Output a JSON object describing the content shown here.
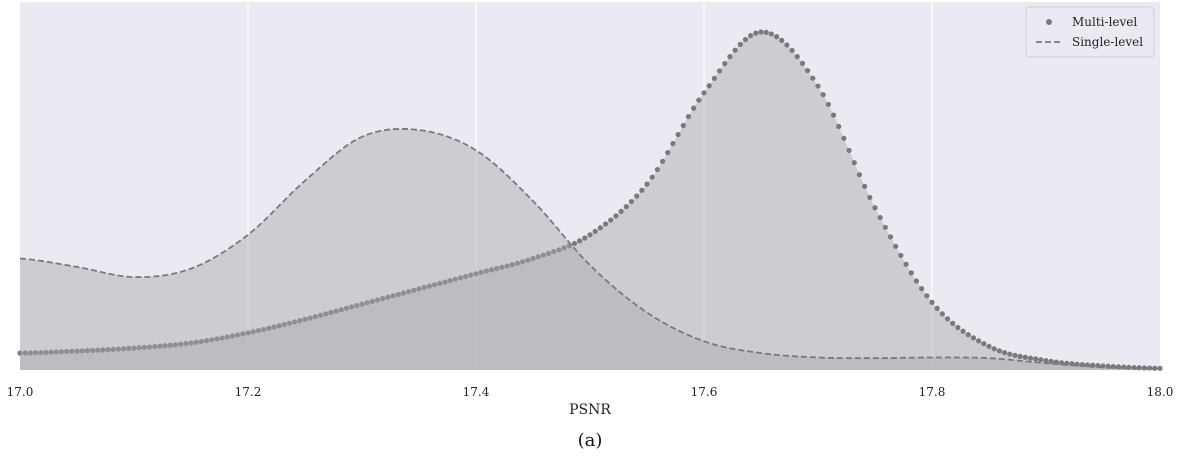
{
  "chart_data": {
    "type": "area",
    "title": "",
    "xlabel": "PSNR",
    "ylabel": "",
    "xlim": [
      17.0,
      18.0
    ],
    "ylim": [
      0,
      1.0
    ],
    "xticks": [
      17.0,
      17.2,
      17.4,
      17.6,
      17.8,
      18.0
    ],
    "xtick_labels": [
      "17.0",
      "17.2",
      "17.4",
      "17.6",
      "17.8",
      "18.0"
    ],
    "grid": true,
    "legend_position": "top-right",
    "caption": "(a)",
    "series": [
      {
        "name": "Multi-level",
        "style": "dotted",
        "x": [
          17.0,
          17.05,
          17.1,
          17.15,
          17.2,
          17.25,
          17.3,
          17.35,
          17.4,
          17.45,
          17.5,
          17.55,
          17.6,
          17.65,
          17.7,
          17.75,
          17.8,
          17.85,
          17.9,
          17.95,
          18.0
        ],
        "y": [
          0.05,
          0.056,
          0.065,
          0.08,
          0.11,
          0.15,
          0.195,
          0.24,
          0.285,
          0.33,
          0.4,
          0.55,
          0.82,
          1.0,
          0.84,
          0.48,
          0.2,
          0.07,
          0.028,
          0.012,
          0.005
        ]
      },
      {
        "name": "Single-level",
        "style": "dashed",
        "x": [
          17.0,
          17.05,
          17.1,
          17.15,
          17.2,
          17.25,
          17.3,
          17.35,
          17.4,
          17.45,
          17.5,
          17.55,
          17.6,
          17.65,
          17.7,
          17.75,
          17.8,
          17.85,
          17.9,
          17.95,
          18.0
        ],
        "y": [
          0.33,
          0.305,
          0.275,
          0.3,
          0.4,
          0.56,
          0.69,
          0.71,
          0.65,
          0.5,
          0.31,
          0.17,
          0.085,
          0.05,
          0.037,
          0.035,
          0.037,
          0.035,
          0.02,
          0.008,
          0.002
        ]
      }
    ]
  },
  "colors": {
    "plot_background": "#eaeaf2",
    "grid": "#ffffff",
    "fill": "#a9a9ad",
    "line": "#7a7a7c",
    "marker": "#7a7a7c"
  }
}
